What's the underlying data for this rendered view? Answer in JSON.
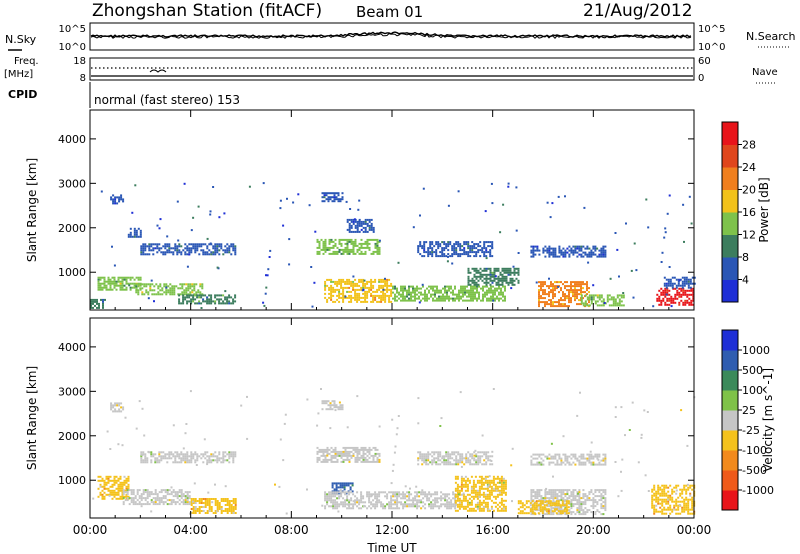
{
  "header": {
    "station": "Zhongshan Station (fitACF)",
    "beam": "Beam 01",
    "date": "21/Aug/2012"
  },
  "sky_panel": {
    "left_label": "N.Sky",
    "left_ticks": [
      "10^5",
      "10^0"
    ],
    "right_ticks": [
      "10^5",
      "10^0"
    ],
    "right_label": "N.Search"
  },
  "freq_panel": {
    "left_label_1": "Freq.",
    "left_label_2": "[MHz]",
    "left_ticks": [
      "18",
      "8"
    ],
    "right_ticks": [
      "60",
      "0"
    ],
    "right_label": "Nave"
  },
  "cpid_panel": {
    "label": "CPID",
    "mode_text": "normal (fast stereo) 153"
  },
  "colors": {
    "power": [
      "#1f2fd6",
      "#2a56b5",
      "#3c7d5e",
      "#7ec24b",
      "#f2c21b",
      "#f07f1e",
      "#e0461c",
      "#e8141a"
    ],
    "velocity": [
      "#1f2fd6",
      "#2f5db0",
      "#3b8a5a",
      "#7fc248",
      "#c6c6c6",
      "#f4c21c",
      "#f28a1c",
      "#ef5a1a",
      "#e8141a"
    ]
  },
  "chart_data": [
    {
      "type": "heatmap",
      "title": "",
      "xlabel": "",
      "ylabel": "Slant Range [km]",
      "x_ticks": [
        "00:00",
        "04:00",
        "08:00",
        "12:00",
        "16:00",
        "20:00",
        "00:00"
      ],
      "y_ticks": [
        "1000",
        "2000",
        "3000",
        "4000"
      ],
      "ylim": [
        150,
        4650
      ],
      "colorbar": {
        "label": "Power [dB]",
        "ticks": [
          "4",
          "8",
          "12",
          "16",
          "20",
          "24",
          "28"
        ],
        "range": [
          0,
          32
        ]
      },
      "regions": [
        {
          "t0": 0.8,
          "t1": 1.3,
          "r0": 2550,
          "r1": 2750,
          "value": 4
        },
        {
          "t0": 1.5,
          "t1": 2.0,
          "r0": 1800,
          "r1": 2000,
          "value": 6
        },
        {
          "t0": 2.0,
          "t1": 5.8,
          "r0": 1400,
          "r1": 1650,
          "value": 7
        },
        {
          "t0": 0.3,
          "t1": 2.0,
          "r0": 600,
          "r1": 900,
          "value": 14
        },
        {
          "t0": 1.8,
          "t1": 4.5,
          "r0": 500,
          "r1": 750,
          "value": 15
        },
        {
          "t0": 3.5,
          "t1": 5.8,
          "r0": 300,
          "r1": 500,
          "value": 10
        },
        {
          "t0": 0.0,
          "t1": 0.6,
          "r0": 200,
          "r1": 400,
          "value": 8
        },
        {
          "t0": 9.2,
          "t1": 10.0,
          "r0": 2600,
          "r1": 2800,
          "value": 5
        },
        {
          "t0": 9.0,
          "t1": 11.5,
          "r0": 1400,
          "r1": 1750,
          "value": 12
        },
        {
          "t0": 10.2,
          "t1": 11.3,
          "r0": 1900,
          "r1": 2200,
          "value": 6
        },
        {
          "t0": 9.3,
          "t1": 12.0,
          "r0": 350,
          "r1": 850,
          "value": 18
        },
        {
          "t0": 12.0,
          "t1": 16.5,
          "r0": 350,
          "r1": 700,
          "value": 12
        },
        {
          "t0": 13.0,
          "t1": 16.0,
          "r0": 1350,
          "r1": 1700,
          "value": 7
        },
        {
          "t0": 15.0,
          "t1": 17.0,
          "r0": 700,
          "r1": 1100,
          "value": 9
        },
        {
          "t0": 17.5,
          "t1": 20.5,
          "r0": 1350,
          "r1": 1600,
          "value": 6
        },
        {
          "t0": 17.8,
          "t1": 19.8,
          "r0": 250,
          "r1": 800,
          "value": 20
        },
        {
          "t0": 19.5,
          "t1": 21.2,
          "r0": 250,
          "r1": 500,
          "value": 14
        },
        {
          "t0": 22.5,
          "t1": 24.0,
          "r0": 250,
          "r1": 650,
          "value": 28
        },
        {
          "t0": 22.8,
          "t1": 24.0,
          "r0": 650,
          "r1": 900,
          "value": 6
        }
      ]
    },
    {
      "type": "heatmap",
      "title": "",
      "xlabel": "Time UT",
      "ylabel": "Slant Range [km]",
      "x_ticks": [
        "00:00",
        "04:00",
        "08:00",
        "12:00",
        "16:00",
        "20:00",
        "00:00"
      ],
      "y_ticks": [
        "1000",
        "2000",
        "3000",
        "4000"
      ],
      "ylim": [
        150,
        4650
      ],
      "colorbar": {
        "label": "Velocity [m s^-1]",
        "ticks": [
          "1000",
          "500",
          "100",
          "25",
          "-25",
          "-100",
          "-500",
          "-1000"
        ],
        "range": [
          -1250,
          1250
        ]
      },
      "regions": [
        {
          "t0": 0.8,
          "t1": 1.3,
          "r0": 2550,
          "r1": 2750,
          "value": 0
        },
        {
          "t0": 2.0,
          "t1": 5.8,
          "r0": 1400,
          "r1": 1650,
          "value": 0
        },
        {
          "t0": 0.3,
          "t1": 1.5,
          "r0": 600,
          "r1": 1100,
          "value": -350
        },
        {
          "t0": 1.3,
          "t1": 4.0,
          "r0": 450,
          "r1": 800,
          "value": 60
        },
        {
          "t0": 4.0,
          "t1": 5.8,
          "r0": 250,
          "r1": 600,
          "value": -300
        },
        {
          "t0": 9.2,
          "t1": 10.0,
          "r0": 2600,
          "r1": 2800,
          "value": 0
        },
        {
          "t0": 9.0,
          "t1": 11.5,
          "r0": 1400,
          "r1": 1750,
          "value": 0
        },
        {
          "t0": 9.6,
          "t1": 10.4,
          "r0": 700,
          "r1": 950,
          "value": 700
        },
        {
          "t0": 9.3,
          "t1": 14.5,
          "r0": 350,
          "r1": 750,
          "value": 60
        },
        {
          "t0": 13.0,
          "t1": 16.0,
          "r0": 1350,
          "r1": 1650,
          "value": 0
        },
        {
          "t0": 14.5,
          "t1": 16.5,
          "r0": 300,
          "r1": 1100,
          "value": -150
        },
        {
          "t0": 17.5,
          "t1": 20.5,
          "r0": 1350,
          "r1": 1600,
          "value": 0
        },
        {
          "t0": 17.5,
          "t1": 20.5,
          "r0": 250,
          "r1": 800,
          "value": 0
        },
        {
          "t0": 17.0,
          "t1": 19.0,
          "r0": 250,
          "r1": 550,
          "value": -300
        },
        {
          "t0": 22.3,
          "t1": 24.0,
          "r0": 250,
          "r1": 900,
          "value": -300
        }
      ]
    }
  ]
}
